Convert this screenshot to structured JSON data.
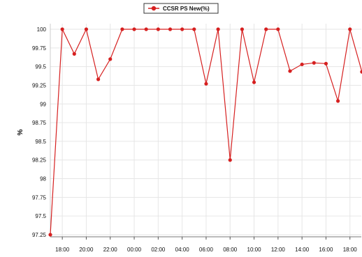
{
  "chart_data": {
    "type": "line",
    "title": "",
    "xlabel": "",
    "ylabel": "%",
    "legend": {
      "position": "top-center",
      "entries": [
        "CCSR PS New(%)"
      ]
    },
    "series": [
      {
        "name": "CCSR PS New(%)",
        "color": "#d62020",
        "values": [
          97.25,
          100,
          99.67,
          100,
          99.33,
          99.6,
          100,
          100,
          100,
          100,
          100,
          100,
          100,
          99.27,
          100,
          98.25,
          100,
          99.29,
          100,
          100,
          99.44,
          99.53,
          99.55,
          99.54,
          99.04,
          100,
          99.43
        ]
      }
    ],
    "x_ticks": [
      "18:00",
      "20:00",
      "22:00",
      "00:00",
      "02:00",
      "04:00",
      "06:00",
      "08:00",
      "10:00",
      "12:00",
      "14:00",
      "16:00",
      "18:00"
    ],
    "y_ticks": [
      "97.25",
      "97.5",
      "97.75",
      "98",
      "98.25",
      "98.5",
      "98.75",
      "99",
      "99.25",
      "99.5",
      "99.75",
      "100"
    ],
    "ylim": [
      97.2,
      100.1
    ],
    "grid": true
  }
}
